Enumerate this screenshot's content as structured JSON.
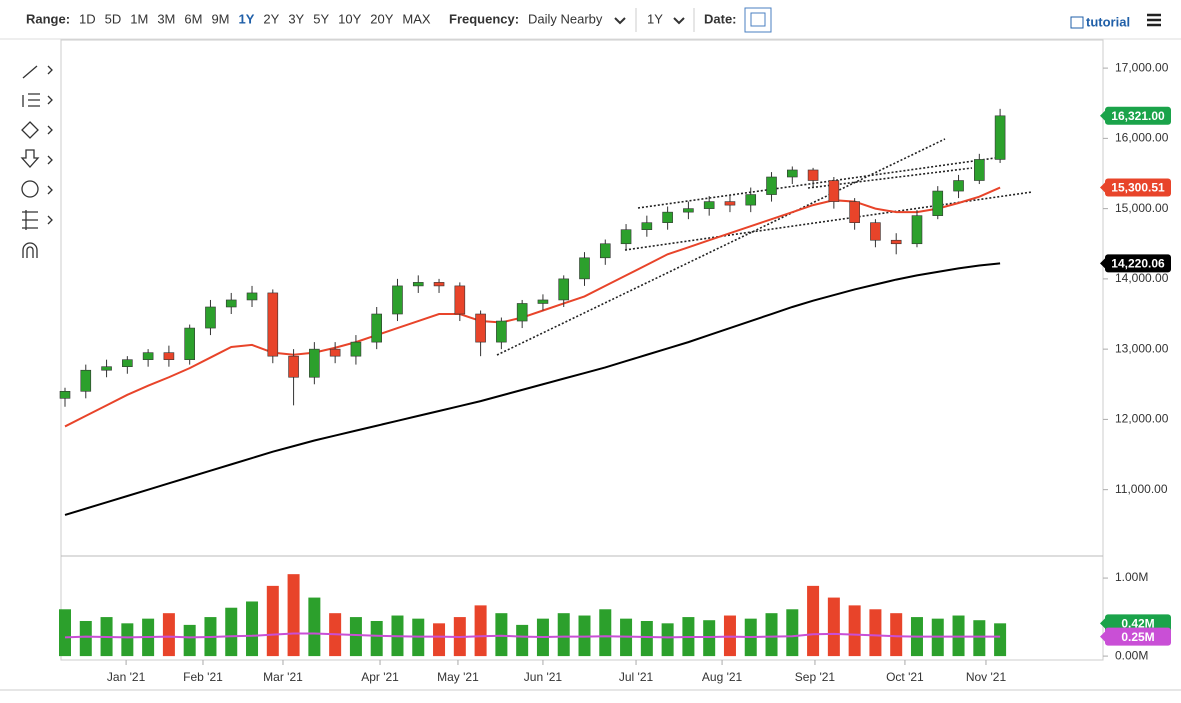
{
  "ui": {
    "range_label": "Range:",
    "ranges": [
      "1D",
      "5D",
      "1M",
      "3M",
      "6M",
      "9M",
      "1Y",
      "2Y",
      "3Y",
      "5Y",
      "10Y",
      "20Y",
      "MAX"
    ],
    "active_range": "1Y",
    "frequency_label": "Frequency:",
    "frequency": "Daily Nearby",
    "period": "1Y",
    "date_label": "Date:",
    "tutorial": "tutorial"
  },
  "chart_data": {
    "type": "candlestick",
    "categories": [
      null,
      null,
      null,
      null,
      null,
      null,
      null,
      null,
      null,
      null,
      null,
      null,
      null,
      null,
      null,
      null,
      null,
      null,
      null,
      null,
      null,
      null,
      null,
      null,
      null,
      null,
      null,
      null,
      null,
      null,
      null,
      null,
      null,
      null,
      null,
      null,
      null,
      null,
      null,
      null,
      null,
      null,
      null,
      null,
      null,
      null
    ],
    "open": [
      12300,
      12400,
      12700,
      12750,
      12850,
      12950,
      12850,
      13300,
      13600,
      13700,
      13800,
      12900,
      12600,
      13000,
      12900,
      13100,
      13500,
      13900,
      13950,
      13900,
      13500,
      13100,
      13400,
      13650,
      13700,
      14000,
      14300,
      14500,
      14700,
      14800,
      14950,
      15000,
      15100,
      15050,
      15200,
      15450,
      15550,
      15400,
      15100,
      14800,
      14550,
      14500,
      14900,
      15250,
      15400,
      15700
    ],
    "high": [
      12450,
      12780,
      12850,
      12900,
      13000,
      13050,
      13350,
      13700,
      13800,
      13900,
      13850,
      13000,
      13100,
      13100,
      13200,
      13600,
      14000,
      14050,
      14000,
      13950,
      13550,
      13450,
      13700,
      13780,
      14050,
      14380,
      14560,
      14780,
      14900,
      15030,
      15100,
      15180,
      15200,
      15300,
      15520,
      15600,
      15580,
      15450,
      15150,
      14850,
      14650,
      14980,
      15320,
      15480,
      15780,
      16420
    ],
    "low": [
      12180,
      12300,
      12600,
      12650,
      12750,
      12750,
      12780,
      13200,
      13500,
      13600,
      12800,
      12200,
      12500,
      12800,
      12780,
      13000,
      13400,
      13800,
      13800,
      13400,
      12900,
      13000,
      13300,
      13550,
      13600,
      13900,
      14200,
      14400,
      14600,
      14700,
      14850,
      14900,
      14950,
      14950,
      15100,
      15350,
      15300,
      15000,
      14700,
      14450,
      14350,
      14450,
      14850,
      15150,
      15350,
      15650
    ],
    "close": [
      12400,
      12700,
      12750,
      12850,
      12950,
      12850,
      13300,
      13600,
      13700,
      13800,
      12900,
      12600,
      13000,
      12900,
      13100,
      13500,
      13900,
      13950,
      13900,
      13500,
      13100,
      13400,
      13650,
      13700,
      14000,
      14300,
      14500,
      14700,
      14800,
      14950,
      15000,
      15100,
      15050,
      15200,
      15450,
      15550,
      15400,
      15100,
      14800,
      14550,
      14500,
      14900,
      15250,
      15400,
      15700,
      16321
    ],
    "up_color": "#2ca02c",
    "down_color": "#e8442a",
    "series": [
      {
        "name": "MA50",
        "color": "#e8442a",
        "values": [
          11900,
          12050,
          12200,
          12350,
          12480,
          12600,
          12730,
          12880,
          13030,
          13060,
          12950,
          12920,
          12950,
          13020,
          13100,
          13200,
          13300,
          13400,
          13500,
          13500,
          13400,
          13380,
          13450,
          13550,
          13650,
          13750,
          13900,
          14050,
          14200,
          14350,
          14450,
          14550,
          14650,
          14750,
          14850,
          14950,
          15050,
          15120,
          15100,
          15000,
          14950,
          14950,
          15000,
          15080,
          15170,
          15300
        ]
      },
      {
        "name": "MA200",
        "color": "#000000",
        "values": [
          10640,
          10730,
          10820,
          10910,
          11000,
          11090,
          11180,
          11270,
          11360,
          11450,
          11540,
          11620,
          11700,
          11770,
          11840,
          11910,
          11980,
          12050,
          12120,
          12190,
          12260,
          12340,
          12420,
          12500,
          12580,
          12660,
          12740,
          12830,
          12920,
          13010,
          13100,
          13200,
          13300,
          13400,
          13500,
          13600,
          13690,
          13770,
          13850,
          13920,
          13990,
          14050,
          14100,
          14150,
          14190,
          14220
        ]
      }
    ],
    "last_labels": [
      {
        "value": 16321,
        "label": "16,321.00",
        "color": "#1aa34a"
      },
      {
        "value": 15300.51,
        "label": "15,300.51",
        "color": "#e8442a"
      },
      {
        "value": 14220.06,
        "label": "14,220.06",
        "color": "#000000"
      }
    ],
    "ylim": [
      10070,
      17400
    ],
    "yticks": [
      {
        "value": 11000,
        "label": "11,000.00"
      },
      {
        "value": 12000,
        "label": "12,000.00"
      },
      {
        "value": 13000,
        "label": "13,000.00"
      },
      {
        "value": 14000,
        "label": "14,000.00"
      },
      {
        "value": 15000,
        "label": "15,000.00"
      },
      {
        "value": 16000,
        "label": "16,000.00"
      },
      {
        "value": 17000,
        "label": "17,000.00"
      }
    ],
    "xticks": [
      {
        "value": 2.94,
        "label": "Jan '21"
      },
      {
        "value": 6.64,
        "label": "Feb '21"
      },
      {
        "value": 10.49,
        "label": "Mar '21"
      },
      {
        "value": 15.16,
        "label": "Apr '21"
      },
      {
        "value": 18.91,
        "label": "May '21"
      },
      {
        "value": 23.0,
        "label": "Jun '21"
      },
      {
        "value": 27.48,
        "label": "Jul '21"
      },
      {
        "value": 31.62,
        "label": "Aug '21"
      },
      {
        "value": 36.09,
        "label": "Sep '21"
      },
      {
        "value": 40.42,
        "label": "Oct '21"
      },
      {
        "value": 44.32,
        "label": "Nov '21"
      }
    ],
    "volume": [
      600000,
      450000,
      500000,
      420000,
      480000,
      550000,
      400000,
      500000,
      620000,
      700000,
      900000,
      1050000,
      750000,
      550000,
      500000,
      450000,
      520000,
      480000,
      420000,
      500000,
      650000,
      550000,
      400000,
      480000,
      550000,
      520000,
      600000,
      480000,
      450000,
      420000,
      500000,
      460000,
      520000,
      480000,
      550000,
      600000,
      900000,
      750000,
      650000,
      600000,
      550000,
      500000,
      480000,
      520000,
      460000,
      420000
    ],
    "volume_ma": {
      "color": "#c94fd6",
      "values": [
        240000,
        250000,
        245000,
        240000,
        245000,
        250000,
        240000,
        245000,
        255000,
        260000,
        275000,
        290000,
        290000,
        280000,
        270000,
        260000,
        255000,
        250000,
        250000,
        245000,
        255000,
        260000,
        250000,
        245000,
        250000,
        250000,
        255000,
        250000,
        245000,
        240000,
        245000,
        245000,
        250000,
        245000,
        250000,
        255000,
        280000,
        285000,
        275000,
        265000,
        255000,
        250000,
        250000,
        250000,
        250000,
        250000
      ]
    },
    "volume_labels": [
      {
        "value": 420000,
        "label": "0.42M",
        "color": "#1aa34a"
      },
      {
        "value": 250000,
        "label": "0.25M",
        "color": "#c94fd6"
      }
    ],
    "vlim": [
      -50000,
      1270000
    ],
    "vticks": [
      {
        "value": 0,
        "label": "0.00M"
      },
      {
        "value": 1000000,
        "label": "1.00M"
      }
    ]
  }
}
